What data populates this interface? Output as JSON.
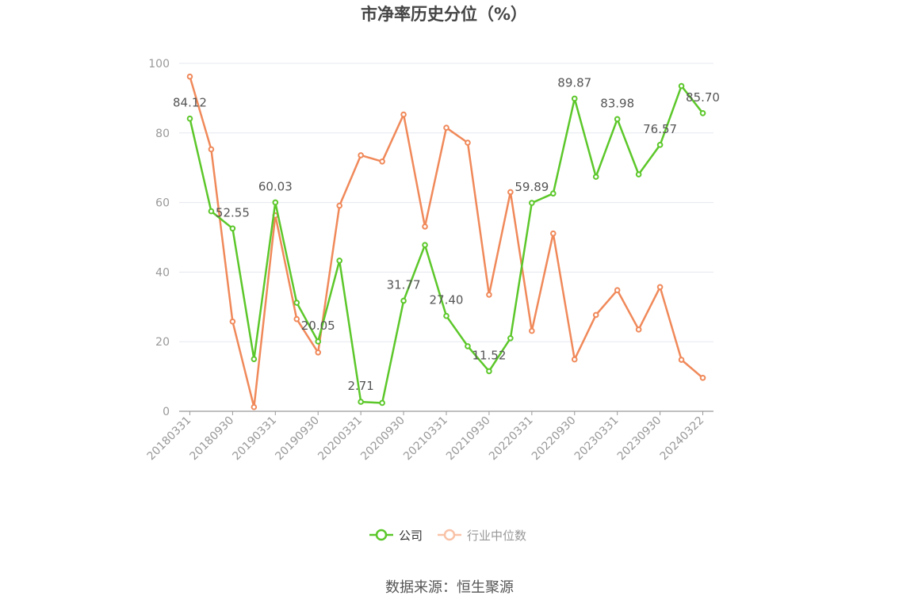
{
  "chart_data": {
    "type": "line",
    "title": "市净率历史分位（%）",
    "ylim": [
      0,
      100
    ],
    "y_ticks": [
      0,
      20,
      40,
      60,
      80,
      100
    ],
    "x": [
      "20180331",
      "20180630",
      "20180930",
      "20181231",
      "20190331",
      "20190630",
      "20190930",
      "20191231",
      "20200331",
      "20200630",
      "20200930",
      "20201231",
      "20210331",
      "20210630",
      "20210930",
      "20211231",
      "20220331",
      "20220630",
      "20220930",
      "20221231",
      "20230331",
      "20230630",
      "20230930",
      "20231231",
      "20240322"
    ],
    "x_tick_labels": [
      "20180331",
      "20180930",
      "20190331",
      "20190930",
      "20200331",
      "20200930",
      "20210331",
      "20210930",
      "20220331",
      "20220930",
      "20230331",
      "20230930",
      "20240322"
    ],
    "grid": true,
    "legend_position": "bottom",
    "series": [
      {
        "name": "公司",
        "color": "#5cc72a",
        "values": [
          84.12,
          57.5,
          52.55,
          15.0,
          60.03,
          31.2,
          20.05,
          43.3,
          2.71,
          2.4,
          31.77,
          47.8,
          27.4,
          18.7,
          11.52,
          21.0,
          59.89,
          62.6,
          89.87,
          67.4,
          83.98,
          68.1,
          76.57,
          93.5,
          85.7
        ],
        "labels": [
          "84.12",
          "",
          "52.55",
          "",
          "60.03",
          "",
          "20.05",
          "",
          "2.71",
          "",
          "31.77",
          "",
          "27.40",
          "",
          "11.52",
          "",
          "59.89",
          "",
          "89.87",
          "",
          "83.98",
          "",
          "76.57",
          "",
          "85.70"
        ]
      },
      {
        "name": "行业中位数",
        "color": "#f0895a",
        "values": [
          96.2,
          75.3,
          25.8,
          1.2,
          56.3,
          26.5,
          16.9,
          59.1,
          73.6,
          71.8,
          85.3,
          53.1,
          81.5,
          77.2,
          33.5,
          63.0,
          23.1,
          51.1,
          14.9,
          27.7,
          34.8,
          23.5,
          35.7,
          14.8,
          9.6
        ]
      }
    ]
  },
  "source_text": "数据来源：恒生聚源"
}
